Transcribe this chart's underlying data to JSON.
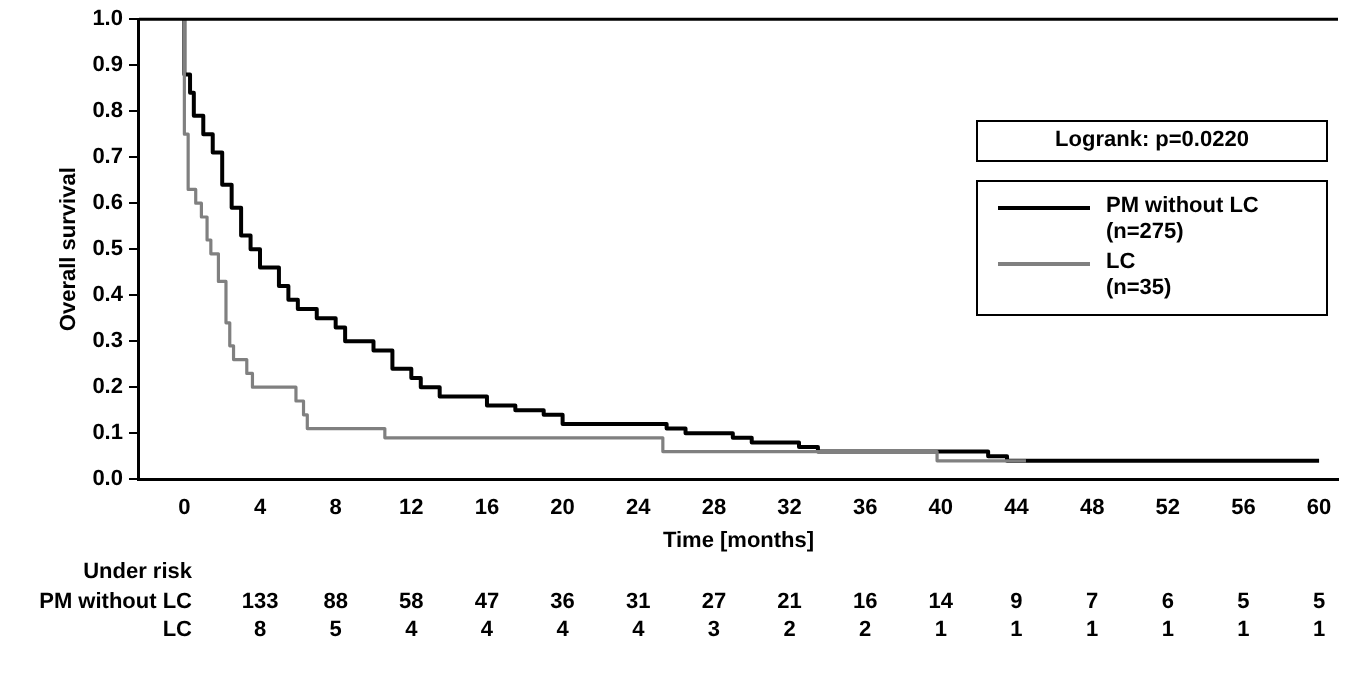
{
  "chart_data": {
    "type": "step",
    "xlabel": "Time [months]",
    "ylabel": "Overall survival",
    "xlim": [
      -2.4,
      61
    ],
    "xticks": [
      0,
      4,
      8,
      12,
      16,
      20,
      24,
      28,
      32,
      36,
      40,
      44,
      48,
      52,
      56,
      60
    ],
    "ylim": [
      0,
      1
    ],
    "yticks": [
      {
        "value": 0,
        "label": "0.0"
      },
      0.1,
      0.2,
      0.3,
      0.4,
      0.5,
      0.6,
      0.7,
      0.8,
      0.9,
      {
        "value": 1,
        "label": "1.0"
      }
    ],
    "grid": false,
    "legend": "top right",
    "marker": "none",
    "line_style": "solid",
    "series": [
      {
        "name": "PM without LC\n(n=275)",
        "color": "#000000",
        "x": [
          0,
          0.3,
          0.5,
          1,
          1.5,
          2,
          2.5,
          3,
          3.5,
          4,
          5,
          5.5,
          6,
          7,
          8,
          8.5,
          10,
          11,
          12,
          12.5,
          13.5,
          15,
          16,
          17.5,
          19,
          20,
          21.5,
          25.5,
          26.5,
          29,
          30,
          32.5,
          33.5,
          41,
          42.5,
          43.5,
          44.5,
          60
        ],
        "values": [
          1,
          0.88,
          0.84,
          0.79,
          0.75,
          0.71,
          0.64,
          0.59,
          0.53,
          0.5,
          0.46,
          0.42,
          0.39,
          0.37,
          0.35,
          0.33,
          0.3,
          0.28,
          0.24,
          0.22,
          0.2,
          0.18,
          0.18,
          0.16,
          0.15,
          0.14,
          0.12,
          0.12,
          0.11,
          0.1,
          0.09,
          0.08,
          0.07,
          0.06,
          0.06,
          0.05,
          0.04,
          0.04
        ]
      },
      {
        "name": "LC\n(n=35)",
        "color": "#808080",
        "x": [
          0,
          0.2,
          0.6,
          0.9,
          1.2,
          1.4,
          1.8,
          2.2,
          2.4,
          2.6,
          3.3,
          3.6,
          5.9,
          6.3,
          6.5,
          10.6,
          25.3,
          39.8,
          44.5
        ],
        "values": [
          1,
          0.75,
          0.63,
          0.6,
          0.57,
          0.52,
          0.49,
          0.43,
          0.34,
          0.29,
          0.26,
          0.23,
          0.2,
          0.17,
          0.14,
          0.11,
          0.09,
          0.06,
          0.04
        ]
      }
    ],
    "annotations": [
      "Logrank: p=0.0220",
      "Under risk",
      "PM without LC",
      "133",
      "88",
      "58",
      "47",
      "36",
      "31",
      "27",
      "21",
      "16",
      "14",
      "9",
      "7",
      "6",
      "5",
      "5",
      "LC",
      "8",
      "5",
      "4",
      "4",
      "4",
      "4",
      "3",
      "2",
      "2",
      "1",
      "1",
      "1",
      "1",
      "1",
      "1"
    ]
  }
}
